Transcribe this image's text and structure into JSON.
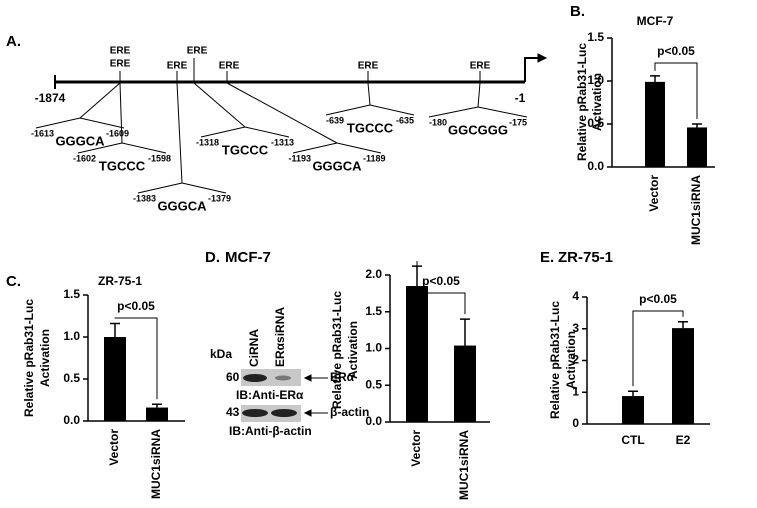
{
  "panel_a": {
    "label": "A.",
    "start": "-1874",
    "end": "-1",
    "ere": [
      "ERE",
      "ERE",
      "ERE",
      "ERE",
      "ERE",
      "ERE",
      "ERE"
    ],
    "sites": [
      {
        "start": "-1613",
        "seq": "GGGCA",
        "end": "-1609"
      },
      {
        "start": "-1602",
        "seq": "TGCCC",
        "end": "-1598"
      },
      {
        "start": "-1383",
        "seq": "GGGCA",
        "end": "-1379"
      },
      {
        "start": "-1318",
        "seq": "TGCCC",
        "end": "-1313"
      },
      {
        "start": "-1193",
        "seq": "GGGCA",
        "end": "-1189"
      },
      {
        "start": "-639",
        "seq": "TGCCC",
        "end": "-635"
      },
      {
        "start": "-180",
        "seq": "GGCGGG",
        "end": "-175"
      }
    ]
  },
  "blot": {
    "header": "kDa",
    "lanes": [
      "CiRNA",
      "ERαsiRNA"
    ],
    "rows": [
      {
        "kda": "60",
        "target": "ERα",
        "ib": "IB:Anti-ERα"
      },
      {
        "kda": "43",
        "target": "β-actin",
        "ib": "IB:Anti-β-actin"
      }
    ]
  },
  "chart_data": [
    {
      "type": "bar",
      "panel": "B.",
      "title": "MCF-7",
      "ylabel": [
        "Relative pRab31-Luc",
        "Activation"
      ],
      "categories": [
        "Vector",
        "MUC1siRNA"
      ],
      "values": [
        0.99,
        0.46
      ],
      "errors": [
        0.07,
        0.04
      ],
      "annotation": "p<0.05",
      "color": "#000000",
      "rotate_categories": true,
      "ylim": [
        0,
        1.5
      ],
      "yticks": [
        {
          "value": 0,
          "label": "0.0"
        },
        0.5,
        {
          "value": 1,
          "label": "1.0"
        },
        1.5
      ]
    },
    {
      "type": "bar",
      "panel": "C.",
      "title": "ZR-75-1",
      "ylabel": [
        "Relative pRab31-Luc",
        "Activation"
      ],
      "categories": [
        "Vector",
        "MUC1siRNA"
      ],
      "values": [
        1.0,
        0.16
      ],
      "errors": [
        0.16,
        0.04
      ],
      "annotation": "p<0.05",
      "color": "#000000",
      "rotate_categories": true,
      "ylim": [
        0,
        1.5
      ],
      "yticks": [
        {
          "value": 0,
          "label": "0.0"
        },
        0.5,
        {
          "value": 1,
          "label": "1.0"
        },
        1.5
      ]
    },
    {
      "type": "bar",
      "panel": "D.",
      "title": "MCF-7",
      "ylabel": [
        "Relative pRab31-Luc",
        "Activation"
      ],
      "categories": [
        "Vector",
        "MUC1siRNA"
      ],
      "values": [
        1.85,
        1.04
      ],
      "errors": [
        0.27,
        0.36
      ],
      "annotation": "p<0.05",
      "color": "#000000",
      "rotate_categories": true,
      "ylim": [
        0,
        2
      ],
      "yticks": [
        {
          "value": 0,
          "label": "0.0"
        },
        0.5,
        {
          "value": 1,
          "label": "1.0"
        },
        1.5,
        {
          "value": 2,
          "label": "2.0"
        }
      ]
    },
    {
      "type": "bar",
      "panel": "E.",
      "title": "ZR-75-1",
      "ylabel": [
        "Relative pRab31-Luc",
        "Activation"
      ],
      "categories": [
        "CTL",
        "E2"
      ],
      "values": [
        0.88,
        3.02
      ],
      "errors": [
        0.15,
        0.2
      ],
      "annotation": "p<0.05",
      "color": "#000000",
      "rotate_categories": false,
      "ylim": [
        0,
        4
      ],
      "yticks": [
        0,
        1,
        2,
        3,
        4
      ]
    }
  ]
}
